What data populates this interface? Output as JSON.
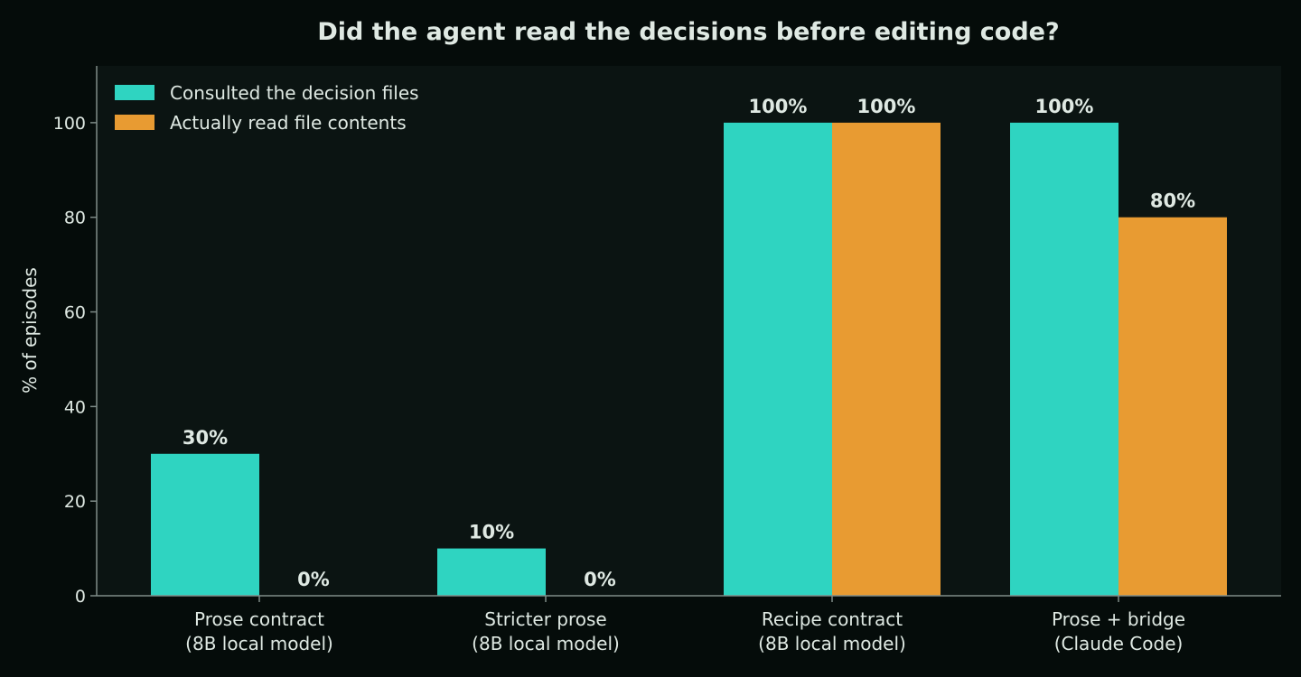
{
  "colors": {
    "page_bg": "#050c0a",
    "plot_bg": "#0b1412",
    "axis": "#7f8c88",
    "text": "#dfe9e3"
  },
  "chart_data": {
    "type": "bar",
    "title": "Did the agent read the decisions before editing code?",
    "ylabel": "% of episodes",
    "xlabel": "",
    "ylim": [
      0,
      112
    ],
    "yticks": [
      0,
      20,
      40,
      60,
      80,
      100
    ],
    "categories": [
      [
        "Prose contract",
        "(8B local model)"
      ],
      [
        "Stricter prose",
        "(8B local model)"
      ],
      [
        "Recipe contract",
        "(8B local model)"
      ],
      [
        "Prose + bridge",
        "(Claude Code)"
      ]
    ],
    "series": [
      {
        "name": "Consulted the decision files",
        "color": "#2fd4c1",
        "values": [
          30,
          10,
          100,
          100
        ],
        "labels": [
          "30%",
          "10%",
          "100%",
          "100%"
        ]
      },
      {
        "name": "Actually read file contents",
        "color": "#e89b32",
        "values": [
          0,
          0,
          100,
          80
        ],
        "labels": [
          "0%",
          "0%",
          "100%",
          "80%"
        ]
      }
    ],
    "legend_position": "top-left",
    "grid": false
  }
}
